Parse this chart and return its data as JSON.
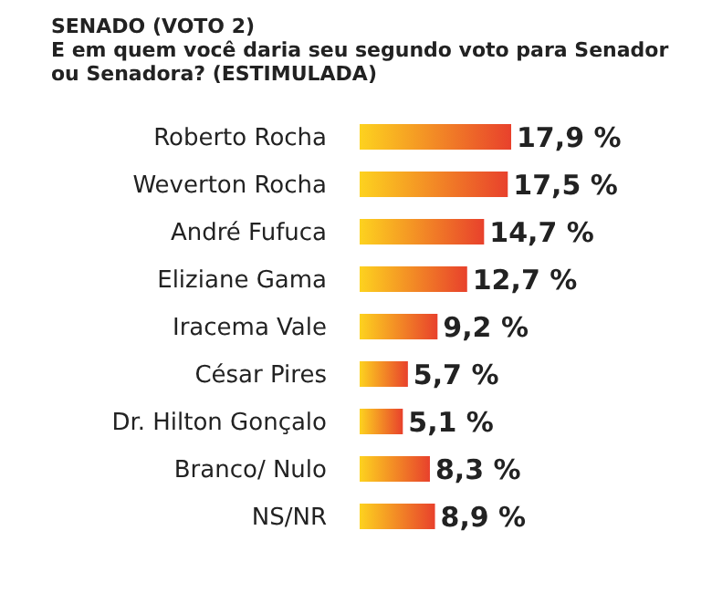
{
  "chart_data": {
    "type": "bar",
    "orientation": "horizontal",
    "title": "SENADO (VOTO 2)",
    "subtitle": "E em quem você daria seu segundo voto para Senador ou Senadora? (ESTIMULADA)",
    "categories": [
      "Roberto Rocha",
      "Weverton Rocha",
      "André Fufuca",
      "Eliziane Gama",
      "Iracema Vale",
      "César Pires",
      "Dr. Hilton Gonçalo",
      "Branco/ Nulo",
      "NS/NR"
    ],
    "values": [
      17.9,
      17.5,
      14.7,
      12.7,
      9.2,
      5.7,
      5.1,
      8.3,
      8.9
    ],
    "value_labels": [
      "17,9 %",
      "17,5 %",
      "14,7 %",
      "12,7 %",
      "9,2 %",
      "5,7 %",
      "5,1 %",
      "8,3 %",
      "8,9 %"
    ],
    "color": "#e8412c",
    "grid": false,
    "legend": false
  }
}
